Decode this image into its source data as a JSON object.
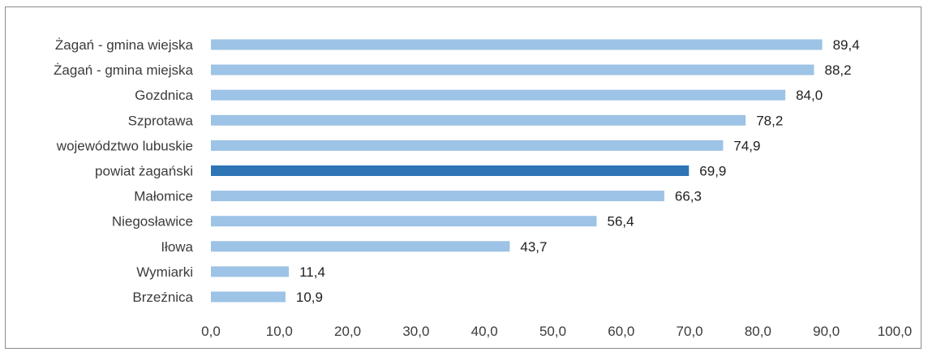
{
  "chart_data": {
    "type": "bar",
    "orientation": "horizontal",
    "categories": [
      "Żagań - gmina wiejska",
      "Żagań - gmina miejska",
      "Gozdnica",
      "Szprotawa",
      "województwo lubuskie",
      "powiat żagański",
      "Małomice",
      "Niegosławice",
      "Iłowa",
      "Wymiarki",
      "Brzeźnica"
    ],
    "values": [
      89.4,
      88.2,
      84.0,
      78.2,
      74.9,
      69.9,
      66.3,
      56.4,
      43.7,
      11.4,
      10.9
    ],
    "value_labels": [
      "89,4",
      "88,2",
      "84,0",
      "78,2",
      "74,9",
      "69,9",
      "66,3",
      "56,4",
      "43,7",
      "11,4",
      "10,9"
    ],
    "highlight_category": "powiat żagański",
    "xlim": [
      0,
      100
    ],
    "xticks": [
      0,
      10,
      20,
      30,
      40,
      50,
      60,
      70,
      80,
      90,
      100
    ],
    "xtick_labels": [
      "0,0",
      "10,0",
      "20,0",
      "30,0",
      "40,0",
      "50,0",
      "60,0",
      "70,0",
      "80,0",
      "90,0",
      "100,0"
    ],
    "title": "",
    "xlabel": "",
    "ylabel": "",
    "grid": false,
    "legend": "none",
    "colors": {
      "bar": "#9dc3e6",
      "highlight": "#2e75b6"
    }
  }
}
